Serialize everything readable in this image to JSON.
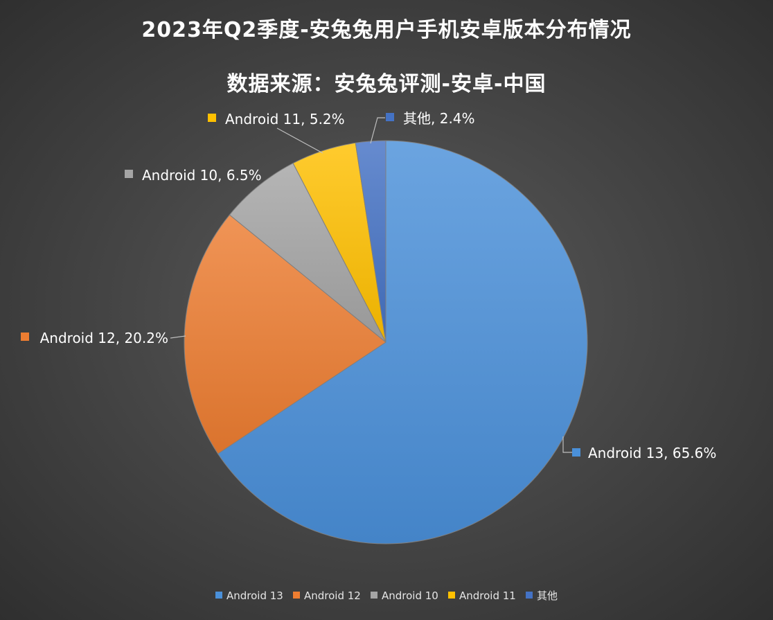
{
  "title": {
    "line1": "2023年Q2季度-安兔兔用户手机安卓版本分布情况",
    "line2": "数据来源：安兔兔评测-安卓-中国"
  },
  "chart_data": {
    "type": "pie",
    "title": "2023年Q2季度-安兔兔用户手机安卓版本分布情况",
    "subtitle": "数据来源：安兔兔评测-安卓-中国",
    "categories": [
      "Android 13",
      "Android 12",
      "Android 10",
      "Android 11",
      "其他"
    ],
    "values": [
      65.6,
      20.2,
      6.5,
      5.2,
      2.4
    ],
    "value_format": "percent",
    "slice_order_clockwise_from_top": [
      "Android 13",
      "Android 12",
      "Android 10",
      "Android 11",
      "其他"
    ],
    "data_labels": [
      "Android 13, 65.6%",
      "Android 12, 20.2%",
      "Android 10, 6.5%",
      "Android 11, 5.2%",
      "其他, 2.4%"
    ],
    "colors": [
      "#4a90d9",
      "#ed7d31",
      "#a5a5a5",
      "#ffc000",
      "#4472c4"
    ],
    "legend": {
      "position": "bottom",
      "entries": [
        "Android 13",
        "Android 12",
        "Android 10",
        "Android 11",
        "其他"
      ]
    }
  }
}
